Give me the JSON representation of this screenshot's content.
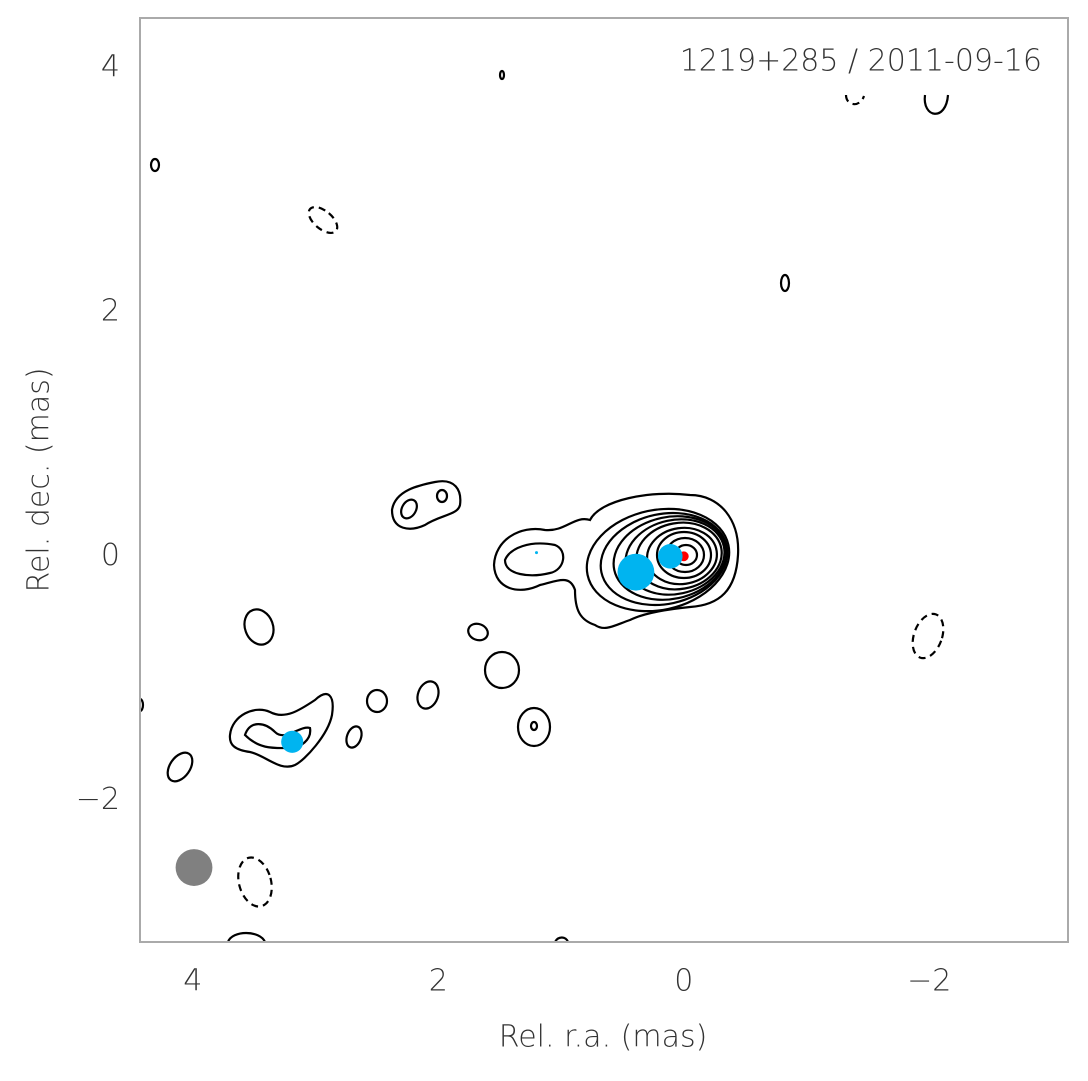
{
  "chart_data": {
    "type": "scatter",
    "annotation": "1219+285 / 2011-09-16",
    "xlabel": "Rel. r.a. (mas)",
    "ylabel": "Rel. dec. (mas)",
    "xlim": [
      4.43,
      -3.13
    ],
    "ylim": [
      -3.16,
      4.41
    ],
    "xticks": [
      4,
      2,
      0,
      {
        "value": -2,
        "label": "−2"
      }
    ],
    "yticks": [
      {
        "value": -2,
        "label": "−2"
      },
      0,
      2,
      4
    ],
    "x": [
      0,
      0.11,
      0.39,
      1.2,
      3.19,
      3.99
    ],
    "y": [
      0,
      0,
      -0.13,
      0.03,
      -1.52,
      -2.55
    ],
    "sizes": [
      0.08,
      0.2,
      0.3,
      0.02,
      0.18,
      0.3
    ],
    "colors": [
      "#ff0000",
      "#00b4f0",
      "#00b4f0",
      "#00b4f0",
      "#00b4f0",
      "#808080"
    ],
    "grid": false
  }
}
